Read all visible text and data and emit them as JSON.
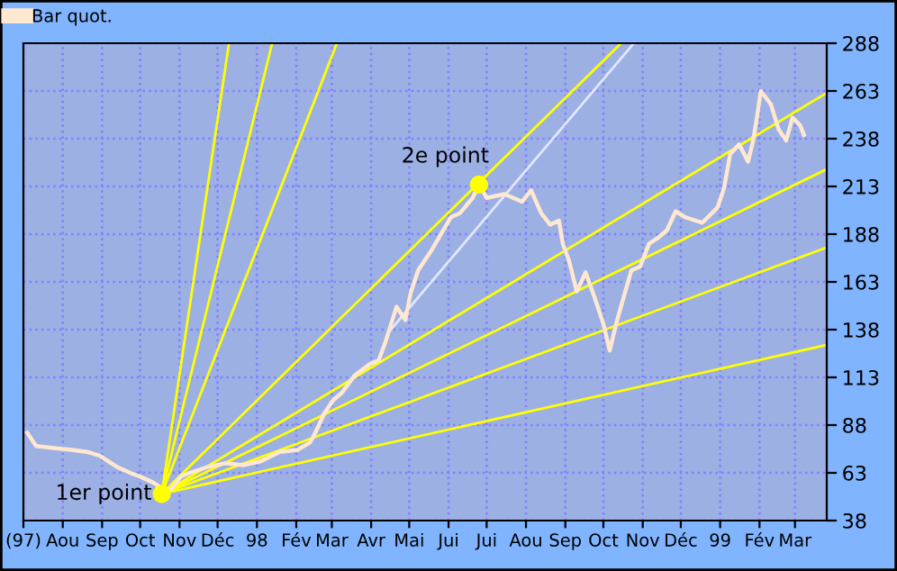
{
  "chart_data": {
    "type": "line",
    "legend": "top left",
    "grid": true,
    "xlim": [
      "1997-07-01",
      "1999-03-26"
    ],
    "ylim": [
      38,
      288
    ],
    "yticks": [
      38,
      63,
      88,
      113,
      138,
      163,
      188,
      213,
      238,
      263,
      288
    ],
    "xticks": [
      {
        "value": "1997-07-01",
        "label": "(97)"
      },
      {
        "value": "1997-08-01",
        "label": "Aou"
      },
      {
        "value": "1997-09-01",
        "label": "Sep"
      },
      {
        "value": "1997-10-01",
        "label": "Oct"
      },
      {
        "value": "1997-11-01",
        "label": "Nov"
      },
      {
        "value": "1997-12-01",
        "label": "Déc"
      },
      {
        "value": "1998-01-01",
        "label": "98"
      },
      {
        "value": "1998-02-01",
        "label": "Fév"
      },
      {
        "value": "1998-03-01",
        "label": "Mar"
      },
      {
        "value": "1998-04-01",
        "label": "Avr"
      },
      {
        "value": "1998-05-01",
        "label": "Mai"
      },
      {
        "value": "1998-06-01",
        "label": "Jui"
      },
      {
        "value": "1998-07-01",
        "label": "Jui"
      },
      {
        "value": "1998-08-01",
        "label": "Aou"
      },
      {
        "value": "1998-09-01",
        "label": "Sep"
      },
      {
        "value": "1998-10-01",
        "label": "Oct"
      },
      {
        "value": "1998-11-01",
        "label": "Nov"
      },
      {
        "value": "1998-12-01",
        "label": "Déc"
      },
      {
        "value": "1999-01-01",
        "label": "99"
      },
      {
        "value": "1999-02-01",
        "label": "Fév"
      },
      {
        "value": "1999-03-01",
        "label": "Mar"
      }
    ],
    "annotations": [
      {
        "text": "1er point",
        "x": "1997-10-18",
        "y": 52
      },
      {
        "text": "2e point",
        "x": "1998-06-25",
        "y": 214
      }
    ],
    "series": [
      {
        "name": "Bar quot.",
        "color": "#ffe8d0",
        "x": [
          "1997-07-04",
          "1997-07-11",
          "1997-07-25",
          "1997-08-08",
          "1997-08-20",
          "1997-08-30",
          "1997-09-13",
          "1997-09-23",
          "1997-10-01",
          "1997-10-11",
          "1997-10-18",
          "1997-10-25",
          "1997-11-02",
          "1997-11-09",
          "1997-11-23",
          "1997-12-07",
          "1997-12-21",
          "1998-01-04",
          "1998-01-19",
          "1998-02-02",
          "1998-02-12",
          "1998-02-16",
          "1998-02-23",
          "1998-03-02",
          "1998-03-09",
          "1998-03-19",
          "1998-03-31",
          "1998-04-07",
          "1998-04-12",
          "1998-04-21",
          "1998-04-28",
          "1998-05-02",
          "1998-05-08",
          "1998-05-19",
          "1998-05-26",
          "1998-06-03",
          "1998-06-10",
          "1998-06-20",
          "1998-06-25",
          "1998-07-01",
          "1998-07-15",
          "1998-07-29",
          "1998-08-05",
          "1998-08-13",
          "1998-08-20",
          "1998-08-27",
          "1998-08-30",
          "1998-09-04",
          "1998-09-10",
          "1998-09-17",
          "1998-09-24",
          "1998-10-01",
          "1998-10-06",
          "1998-10-11",
          "1998-10-17",
          "1998-10-23",
          "1998-10-30",
          "1998-11-06",
          "1998-11-13",
          "1998-11-20",
          "1998-11-27",
          "1998-12-04",
          "1998-12-18",
          "1998-12-30",
          "1999-01-04",
          "1999-01-09",
          "1999-01-16",
          "1999-01-23",
          "1999-01-27",
          "1999-01-30",
          "1999-02-02",
          "1999-02-10",
          "1999-02-16",
          "1999-02-22",
          "1999-02-27",
          "1999-03-05",
          "1999-03-08"
        ],
        "values": [
          84,
          77,
          76,
          75,
          74,
          72,
          66,
          63,
          61,
          58,
          55,
          54,
          61,
          63,
          66,
          68,
          67,
          69,
          74,
          75,
          79,
          84,
          94,
          101,
          105,
          114,
          120,
          122,
          131,
          150,
          143,
          157,
          169,
          180,
          188,
          197,
          199,
          207,
          214,
          207,
          209,
          205,
          211,
          199,
          193,
          195,
          183,
          174,
          158,
          168,
          155,
          141,
          127,
          141,
          155,
          169,
          171,
          183,
          186,
          190,
          200,
          197,
          194,
          202,
          212,
          230,
          235,
          226,
          237,
          249,
          263,
          256,
          243,
          237,
          249,
          245,
          240
        ]
      },
      {
        "type": "line",
        "color": "#ffff00",
        "x": [
          "1997-10-18",
          "1997-12-10"
        ],
        "values": [
          52,
          288
        ]
      },
      {
        "type": "line",
        "color": "#ffff00",
        "x": [
          "1997-10-18",
          "1998-01-13"
        ],
        "values": [
          52,
          288
        ]
      },
      {
        "type": "line",
        "color": "#ffff00",
        "x": [
          "1997-10-18",
          "1998-03-05"
        ],
        "values": [
          52,
          288
        ]
      },
      {
        "type": "line",
        "color": "#ffff00",
        "x": [
          "1997-10-18",
          "1998-10-15"
        ],
        "values": [
          52,
          288
        ]
      },
      {
        "type": "line",
        "color": "#ffff00",
        "x": [
          "1997-10-18",
          "1999-03-26"
        ],
        "values": [
          52,
          262
        ]
      },
      {
        "type": "line",
        "color": "#ffff00",
        "x": [
          "1997-10-18",
          "1999-03-26"
        ],
        "values": [
          52,
          222
        ]
      },
      {
        "type": "line",
        "color": "#ffff00",
        "x": [
          "1997-10-18",
          "1999-03-26"
        ],
        "values": [
          52,
          181
        ]
      },
      {
        "type": "line",
        "color": "#ffff00",
        "x": [
          "1997-10-18",
          "1999-03-26"
        ],
        "values": [
          52,
          130
        ]
      },
      {
        "type": "line",
        "color": "#e0e8ff",
        "x": [
          "1998-04-14",
          "1998-10-25"
        ],
        "values": [
          136,
          288
        ]
      },
      {
        "type": "scatter",
        "color": "#ffff00",
        "x": [
          "1997-10-18",
          "1998-06-25"
        ],
        "values": [
          52,
          214
        ]
      }
    ]
  }
}
